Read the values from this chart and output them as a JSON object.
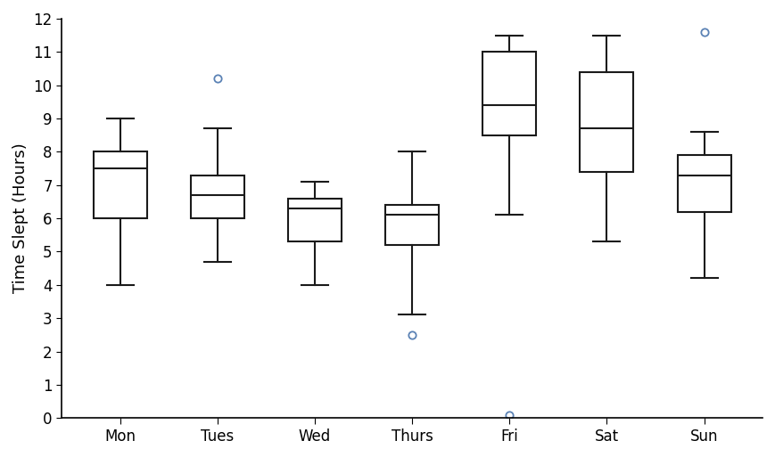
{
  "categories": [
    "Mon",
    "Tues",
    "Wed",
    "Thurs",
    "Fri",
    "Sat",
    "Sun"
  ],
  "boxes": [
    {
      "whislo": 4.0,
      "q1": 6.0,
      "med": 7.5,
      "q3": 8.0,
      "whishi": 9.0,
      "fliers": []
    },
    {
      "whislo": 4.7,
      "q1": 6.0,
      "med": 6.7,
      "q3": 7.3,
      "whishi": 8.7,
      "fliers": [
        10.2
      ]
    },
    {
      "whislo": 4.0,
      "q1": 5.3,
      "med": 6.3,
      "q3": 6.6,
      "whishi": 7.1,
      "fliers": []
    },
    {
      "whislo": 3.1,
      "q1": 5.2,
      "med": 6.1,
      "q3": 6.4,
      "whishi": 8.0,
      "fliers": [
        2.5
      ]
    },
    {
      "whislo": 6.1,
      "q1": 8.5,
      "med": 9.4,
      "q3": 11.0,
      "whishi": 11.5,
      "fliers": [
        0.1
      ]
    },
    {
      "whislo": 5.3,
      "q1": 7.4,
      "med": 8.7,
      "q3": 10.4,
      "whishi": 11.5,
      "fliers": []
    },
    {
      "whislo": 4.2,
      "q1": 6.2,
      "med": 7.3,
      "q3": 7.9,
      "whishi": 8.6,
      "fliers": [
        11.6
      ]
    }
  ],
  "ylabel": "Time Slept (Hours)",
  "ylim": [
    0,
    12
  ],
  "yticks": [
    0,
    1,
    2,
    3,
    4,
    5,
    6,
    7,
    8,
    9,
    10,
    11,
    12
  ],
  "box_facecolor": "#ffffff",
  "box_edgecolor": "#1a1a1a",
  "whisker_color": "#1a1a1a",
  "median_color": "#1a1a1a",
  "flier_color": "#5b82b5",
  "flier_marker": "o",
  "line_width": 1.5,
  "background_color": "#ffffff",
  "tick_fontsize": 12,
  "label_fontsize": 13
}
